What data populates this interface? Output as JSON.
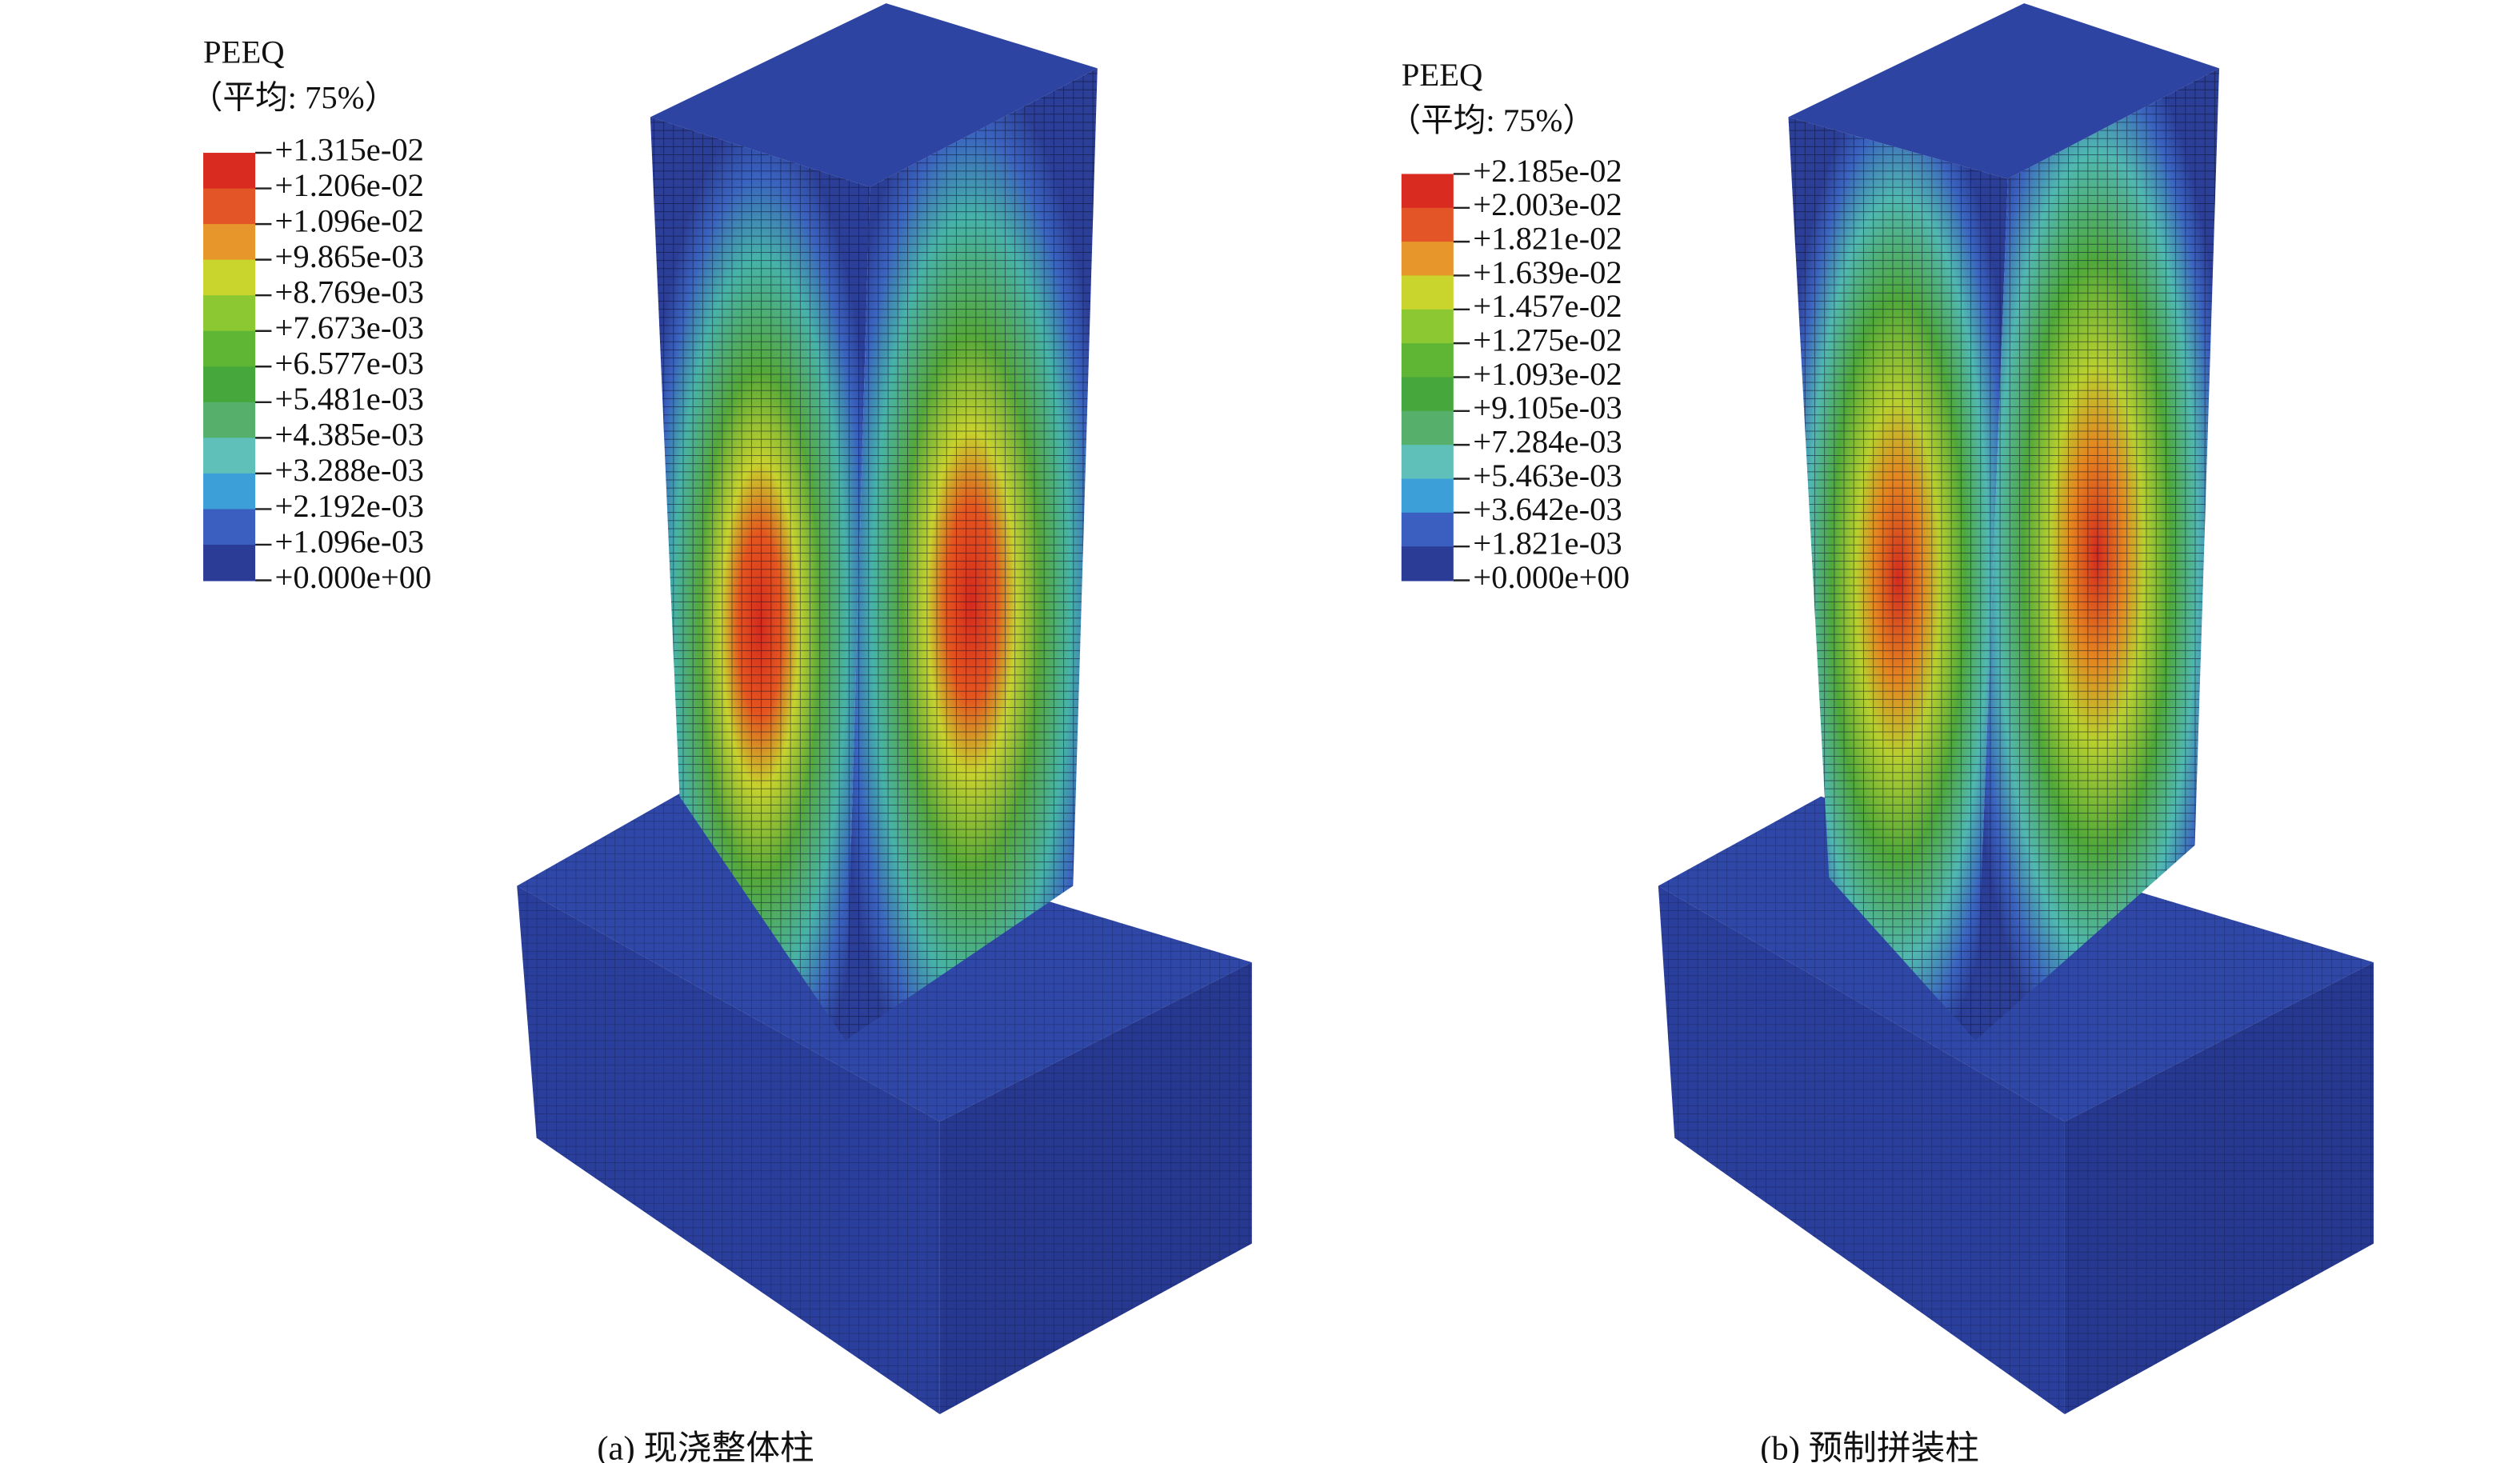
{
  "panels": [
    {
      "legend": {
        "title": "PEEQ",
        "subtitle": "（平均: 75%）",
        "labels": [
          "+1.315e-02",
          "+1.206e-02",
          "+1.096e-02",
          "+9.865e-03",
          "+8.769e-03",
          "+7.673e-03",
          "+6.577e-03",
          "+5.481e-03",
          "+4.385e-03",
          "+3.288e-03",
          "+2.192e-03",
          "+1.096e-03",
          "+0.000e+00"
        ],
        "colors": [
          "#d92b20",
          "#e35526",
          "#e6962a",
          "#c9d52c",
          "#8bc832",
          "#5fb634",
          "#46a83c",
          "#56b06b",
          "#5ec0b8",
          "#3d9fd8",
          "#3b5fc0",
          "#2a3c96"
        ]
      },
      "caption": "(a) 现浇整体柱"
    },
    {
      "legend": {
        "title": "PEEQ",
        "subtitle": "（平均: 75%）",
        "labels": [
          "+2.185e-02",
          "+2.003e-02",
          "+1.821e-02",
          "+1.639e-02",
          "+1.457e-02",
          "+1.275e-02",
          "+1.093e-02",
          "+9.105e-03",
          "+7.284e-03",
          "+5.463e-03",
          "+3.642e-03",
          "+1.821e-03",
          "+0.000e+00"
        ],
        "colors": [
          "#d92b20",
          "#e35526",
          "#e6962a",
          "#c9d52c",
          "#8bc832",
          "#5fb634",
          "#46a83c",
          "#56b06b",
          "#5ec0b8",
          "#3d9fd8",
          "#3b5fc0",
          "#2a3c96"
        ]
      },
      "caption": "(b) 预制拼装柱"
    }
  ]
}
